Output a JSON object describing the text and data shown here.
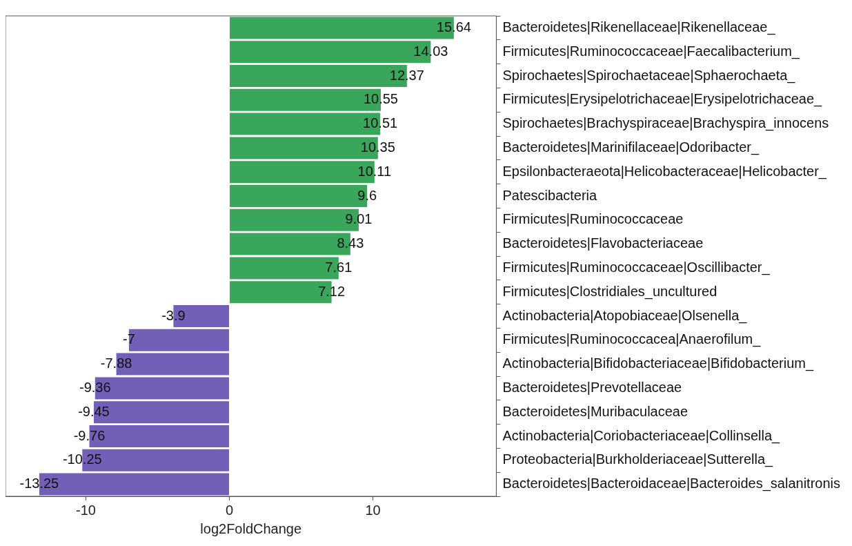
{
  "chart_data": {
    "type": "bar",
    "orientation": "horizontal",
    "xlabel": "log2FoldChange",
    "categories": [
      "Bacteroidetes|Rikenellaceae|Rikenellaceae_",
      "Firmicutes|Ruminococcaceae|Faecalibacterium_",
      "Spirochaetes|Spirochaetaceae|Sphaerochaeta_",
      "Firmicutes|Erysipelotrichaceae|Erysipelotrichaceae_",
      "Spirochaetes|Brachyspiraceae|Brachyspira_innocens",
      "Bacteroidetes|Marinifilaceae|Odoribacter_",
      "Epsilonbacteraeota|Helicobacteraceae|Helicobacter_",
      "Patescibacteria",
      "Firmicutes|Ruminococcaceae",
      "Bacteroidetes|Flavobacteriaceae",
      "Firmicutes|Ruminococcaceae|Oscillibacter_",
      "Firmicutes|Clostridiales_uncultured",
      "Actinobacteria|Atopobiaceae|Olsenella_",
      "Firmicutes|Ruminococcacea|Anaerofilum_",
      "Actinobacteria|Bifidobacteriaceae|Bifidobacterium_",
      "Bacteroidetes|Prevotellaceae",
      "Bacteroidetes|Muribaculaceae",
      "Actinobacteria|Coriobacteriaceae|Collinsella_",
      "Proteobacteria|Burkholderiaceae|Sutterella_",
      "Bacteroidetes|Bacteroidaceae|Bacteroides_salanitronis"
    ],
    "values": [
      15.64,
      14.03,
      12.37,
      10.55,
      10.51,
      10.35,
      10.11,
      9.6,
      9.01,
      8.43,
      7.61,
      7.12,
      -3.9,
      -7,
      -7.88,
      -9.36,
      -9.45,
      -9.76,
      -10.25,
      -13.25
    ],
    "colors": [
      "#3aa65c",
      "#3aa65c",
      "#3aa65c",
      "#3aa65c",
      "#3aa65c",
      "#3aa65c",
      "#3aa65c",
      "#3aa65c",
      "#3aa65c",
      "#3aa65c",
      "#3aa65c",
      "#3aa65c",
      "#735fb8",
      "#735fb8",
      "#735fb8",
      "#735fb8",
      "#735fb8",
      "#735fb8",
      "#735fb8",
      "#735fb8"
    ],
    "xlim": [
      -15.6,
      18.6
    ],
    "xticks": [
      -10,
      0,
      10
    ],
    "data_labels": true,
    "grid": false
  }
}
